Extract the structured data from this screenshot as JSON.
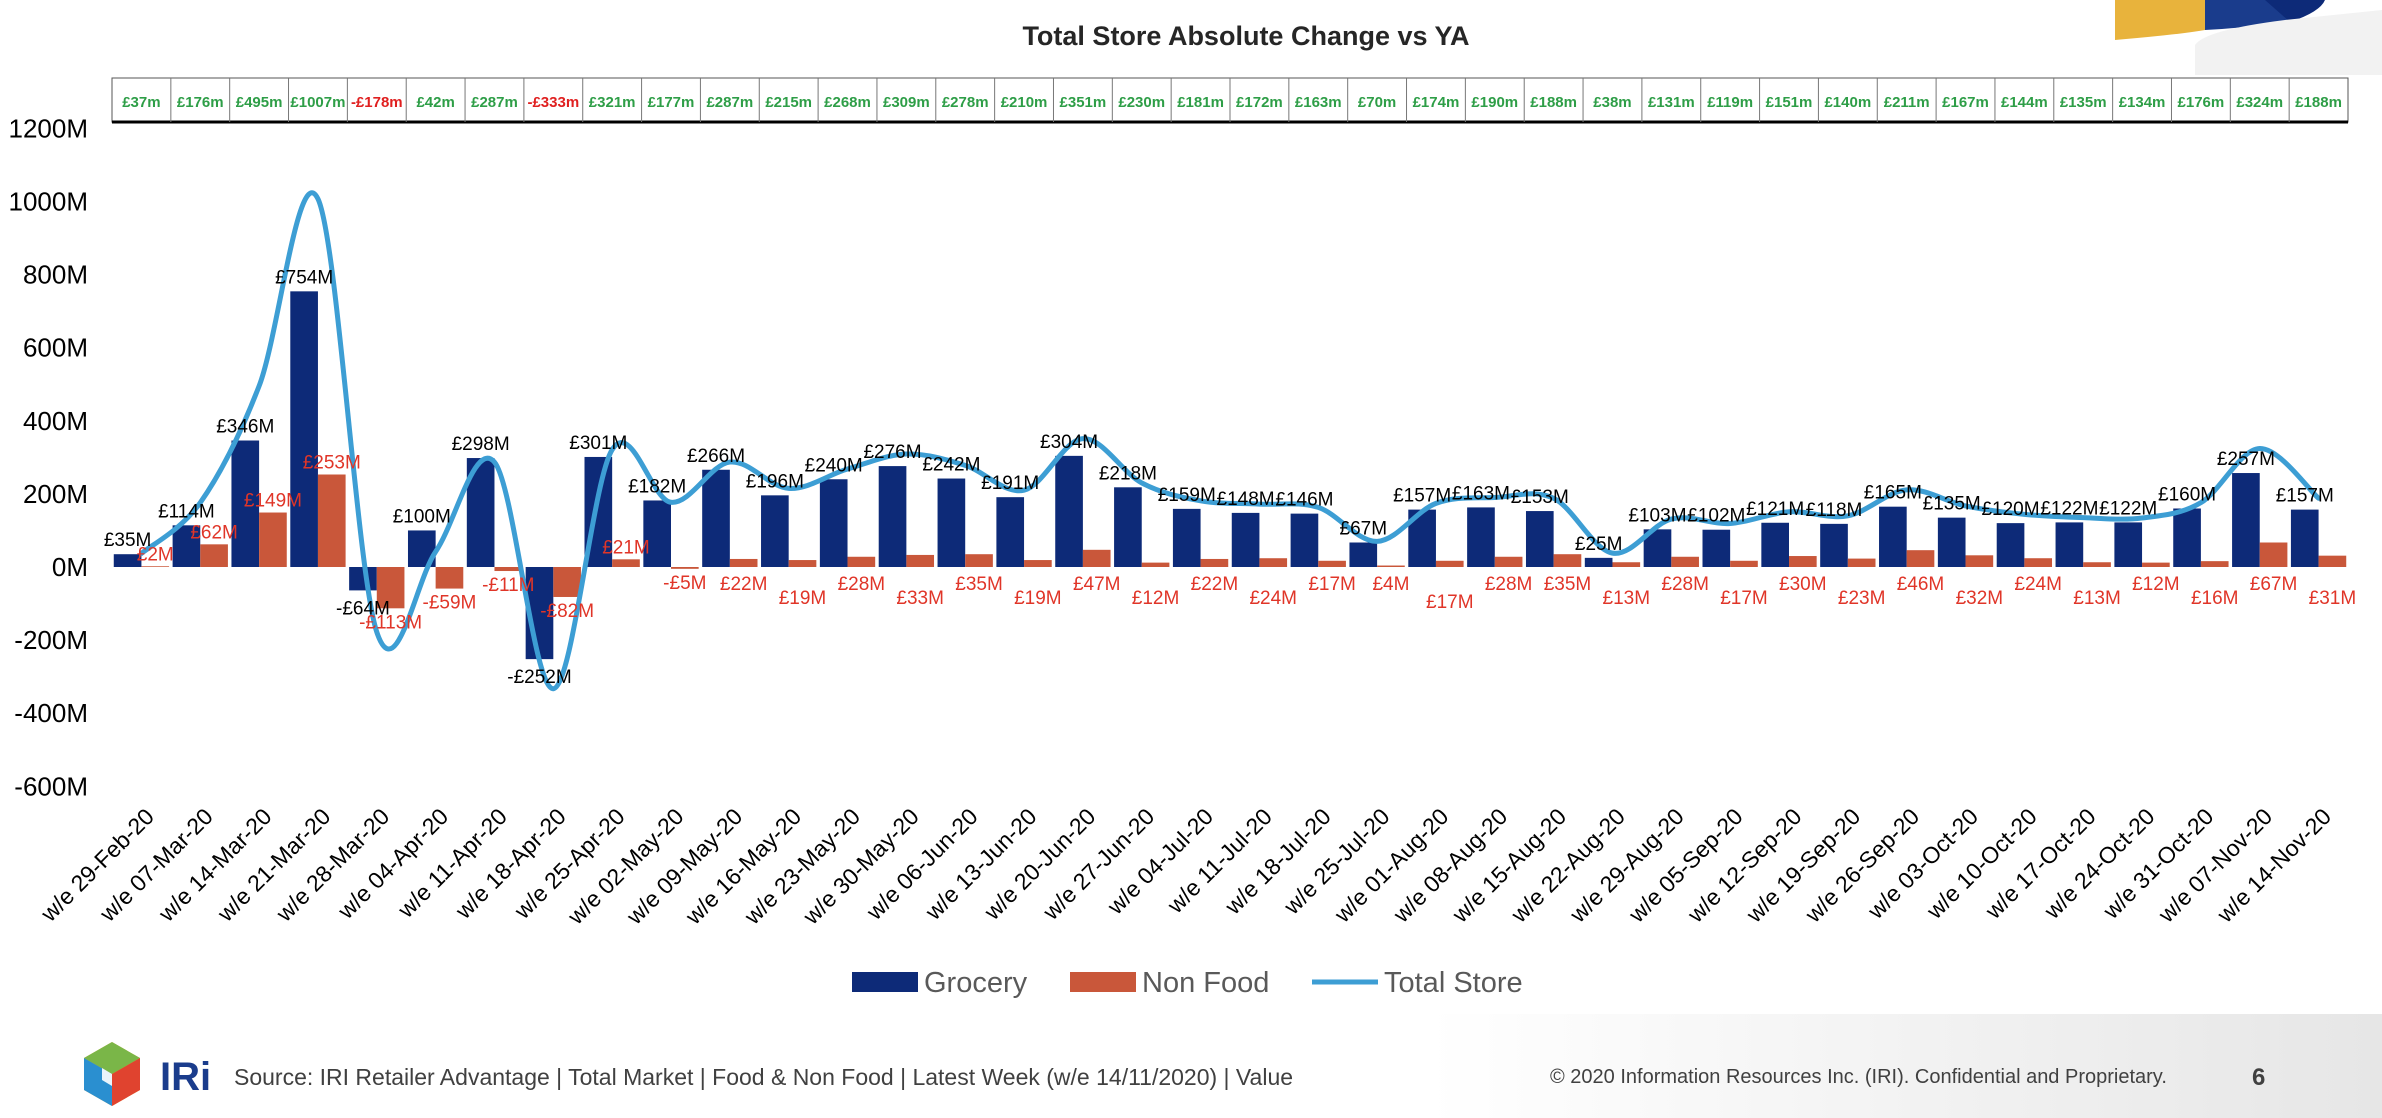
{
  "footer": {
    "source": "Source: IRI Retailer Advantage | Total Market | Food & Non Food | Latest Week (w/e 14/11/2020) | Value",
    "copyright": "© 2020 Information Resources Inc. (IRI). Confidential and Proprietary.",
    "page_number": "6",
    "logo_text": "IRi"
  },
  "colors": {
    "grocery": "#0d2a78",
    "non_food": "#c9573a",
    "total_store": "#3d9ed4",
    "positive_text": "#2e9e47",
    "negative_text": "#e02020",
    "non_food_label": "#e03528"
  },
  "chart_data": {
    "type": "bar",
    "title": "Total Store Absolute Change vs YA",
    "xlabel": "",
    "ylabel": "",
    "ylim": [
      -600,
      1200
    ],
    "yticks": [
      "1200M",
      "1000M",
      "800M",
      "600M",
      "400M",
      "200M",
      "0M",
      "-200M",
      "-400M",
      "-600M"
    ],
    "grid": false,
    "legend": "bottom",
    "categories": [
      "w/e 29-Feb-20",
      "w/e 07-Mar-20",
      "w/e 14-Mar-20",
      "w/e 21-Mar-20",
      "w/e 28-Mar-20",
      "w/e 04-Apr-20",
      "w/e 11-Apr-20",
      "w/e 18-Apr-20",
      "w/e 25-Apr-20",
      "w/e 02-May-20",
      "w/e 09-May-20",
      "w/e 16-May-20",
      "w/e 23-May-20",
      "w/e 30-May-20",
      "w/e 06-Jun-20",
      "w/e 13-Jun-20",
      "w/e 20-Jun-20",
      "w/e 27-Jun-20",
      "w/e 04-Jul-20",
      "w/e 11-Jul-20",
      "w/e 18-Jul-20",
      "w/e 25-Jul-20",
      "w/e 01-Aug-20",
      "w/e 08-Aug-20",
      "w/e 15-Aug-20",
      "w/e 22-Aug-20",
      "w/e 29-Aug-20",
      "w/e 05-Sep-20",
      "w/e 12-Sep-20",
      "w/e 19-Sep-20",
      "w/e 26-Sep-20",
      "w/e 03-Oct-20",
      "w/e 10-Oct-20",
      "w/e 17-Oct-20",
      "w/e 24-Oct-20",
      "w/e 31-Oct-20",
      "w/e 07-Nov-20",
      "w/e 14-Nov-20"
    ],
    "series": [
      {
        "name": "Grocery",
        "values": [
          35,
          114,
          346,
          754,
          -64,
          100,
          298,
          -252,
          301,
          182,
          266,
          196,
          240,
          276,
          242,
          191,
          304,
          218,
          159,
          148,
          146,
          67,
          157,
          163,
          153,
          25,
          103,
          102,
          121,
          118,
          165,
          135,
          120,
          122,
          122,
          160,
          257,
          157
        ],
        "labels": [
          "£35M",
          "£114M",
          "£346M",
          "£754M",
          "-£64M",
          "£100M",
          "£298M",
          "-£252M",
          "£301M",
          "£182M",
          "£266M",
          "£196M",
          "£240M",
          "£276M",
          "£242M",
          "£191M",
          "£304M",
          "£218M",
          "£159M",
          "£148M",
          "£146M",
          "£67M",
          "£157M",
          "£163M",
          "£153M",
          "£25M",
          "£103M",
          "£102M",
          "£121M",
          "£118M",
          "£165M",
          "£135M",
          "£120M",
          "£122M",
          "£122M",
          "£160M",
          "£257M",
          "£157M"
        ]
      },
      {
        "name": "Non Food",
        "values": [
          2,
          62,
          149,
          253,
          -113,
          -59,
          -11,
          -82,
          21,
          -5,
          22,
          19,
          28,
          33,
          35,
          19,
          47,
          12,
          22,
          24,
          17,
          4,
          17,
          28,
          35,
          13,
          28,
          17,
          30,
          23,
          46,
          32,
          24,
          13,
          12,
          16,
          67,
          31
        ],
        "labels": [
          "£2M",
          "£62M",
          "£149M",
          "£253M",
          "-£113M",
          "-£59M",
          "-£11M",
          "-£82M",
          "£21M",
          "-£5M",
          "£22M",
          "£19M",
          "£28M",
          "£33M",
          "£35M",
          "£19M",
          "£47M",
          "£12M",
          "£22M",
          "£24M",
          "£17M",
          "£4M",
          "£17M",
          "£28M",
          "£35M",
          "£13M",
          "£28M",
          "£17M",
          "£30M",
          "£23M",
          "£46M",
          "£32M",
          "£24M",
          "£13M",
          "£12M",
          "£16M",
          "£67M",
          "£31M"
        ]
      },
      {
        "name": "Total Store",
        "type": "line",
        "values": [
          37,
          176,
          495,
          1007,
          -178,
          42,
          287,
          -333,
          321,
          177,
          287,
          215,
          268,
          309,
          278,
          210,
          351,
          230,
          181,
          172,
          163,
          70,
          174,
          190,
          188,
          38,
          131,
          119,
          151,
          140,
          211,
          167,
          144,
          135,
          134,
          176,
          324,
          188
        ],
        "labels": [
          "£37m",
          "£176m",
          "£495m",
          "£1007m",
          "-£178m",
          "£42m",
          "£287m",
          "-£333m",
          "£321m",
          "£177m",
          "£287m",
          "£215m",
          "£268m",
          "£309m",
          "£278m",
          "£210m",
          "£351m",
          "£230m",
          "£181m",
          "£172m",
          "£163m",
          "£70m",
          "£174m",
          "£190m",
          "£188m",
          "£38m",
          "£131m",
          "£119m",
          "£151m",
          "£140m",
          "£211m",
          "£167m",
          "£144m",
          "£135m",
          "£134m",
          "£176m",
          "£324m",
          "£188m"
        ]
      }
    ]
  }
}
